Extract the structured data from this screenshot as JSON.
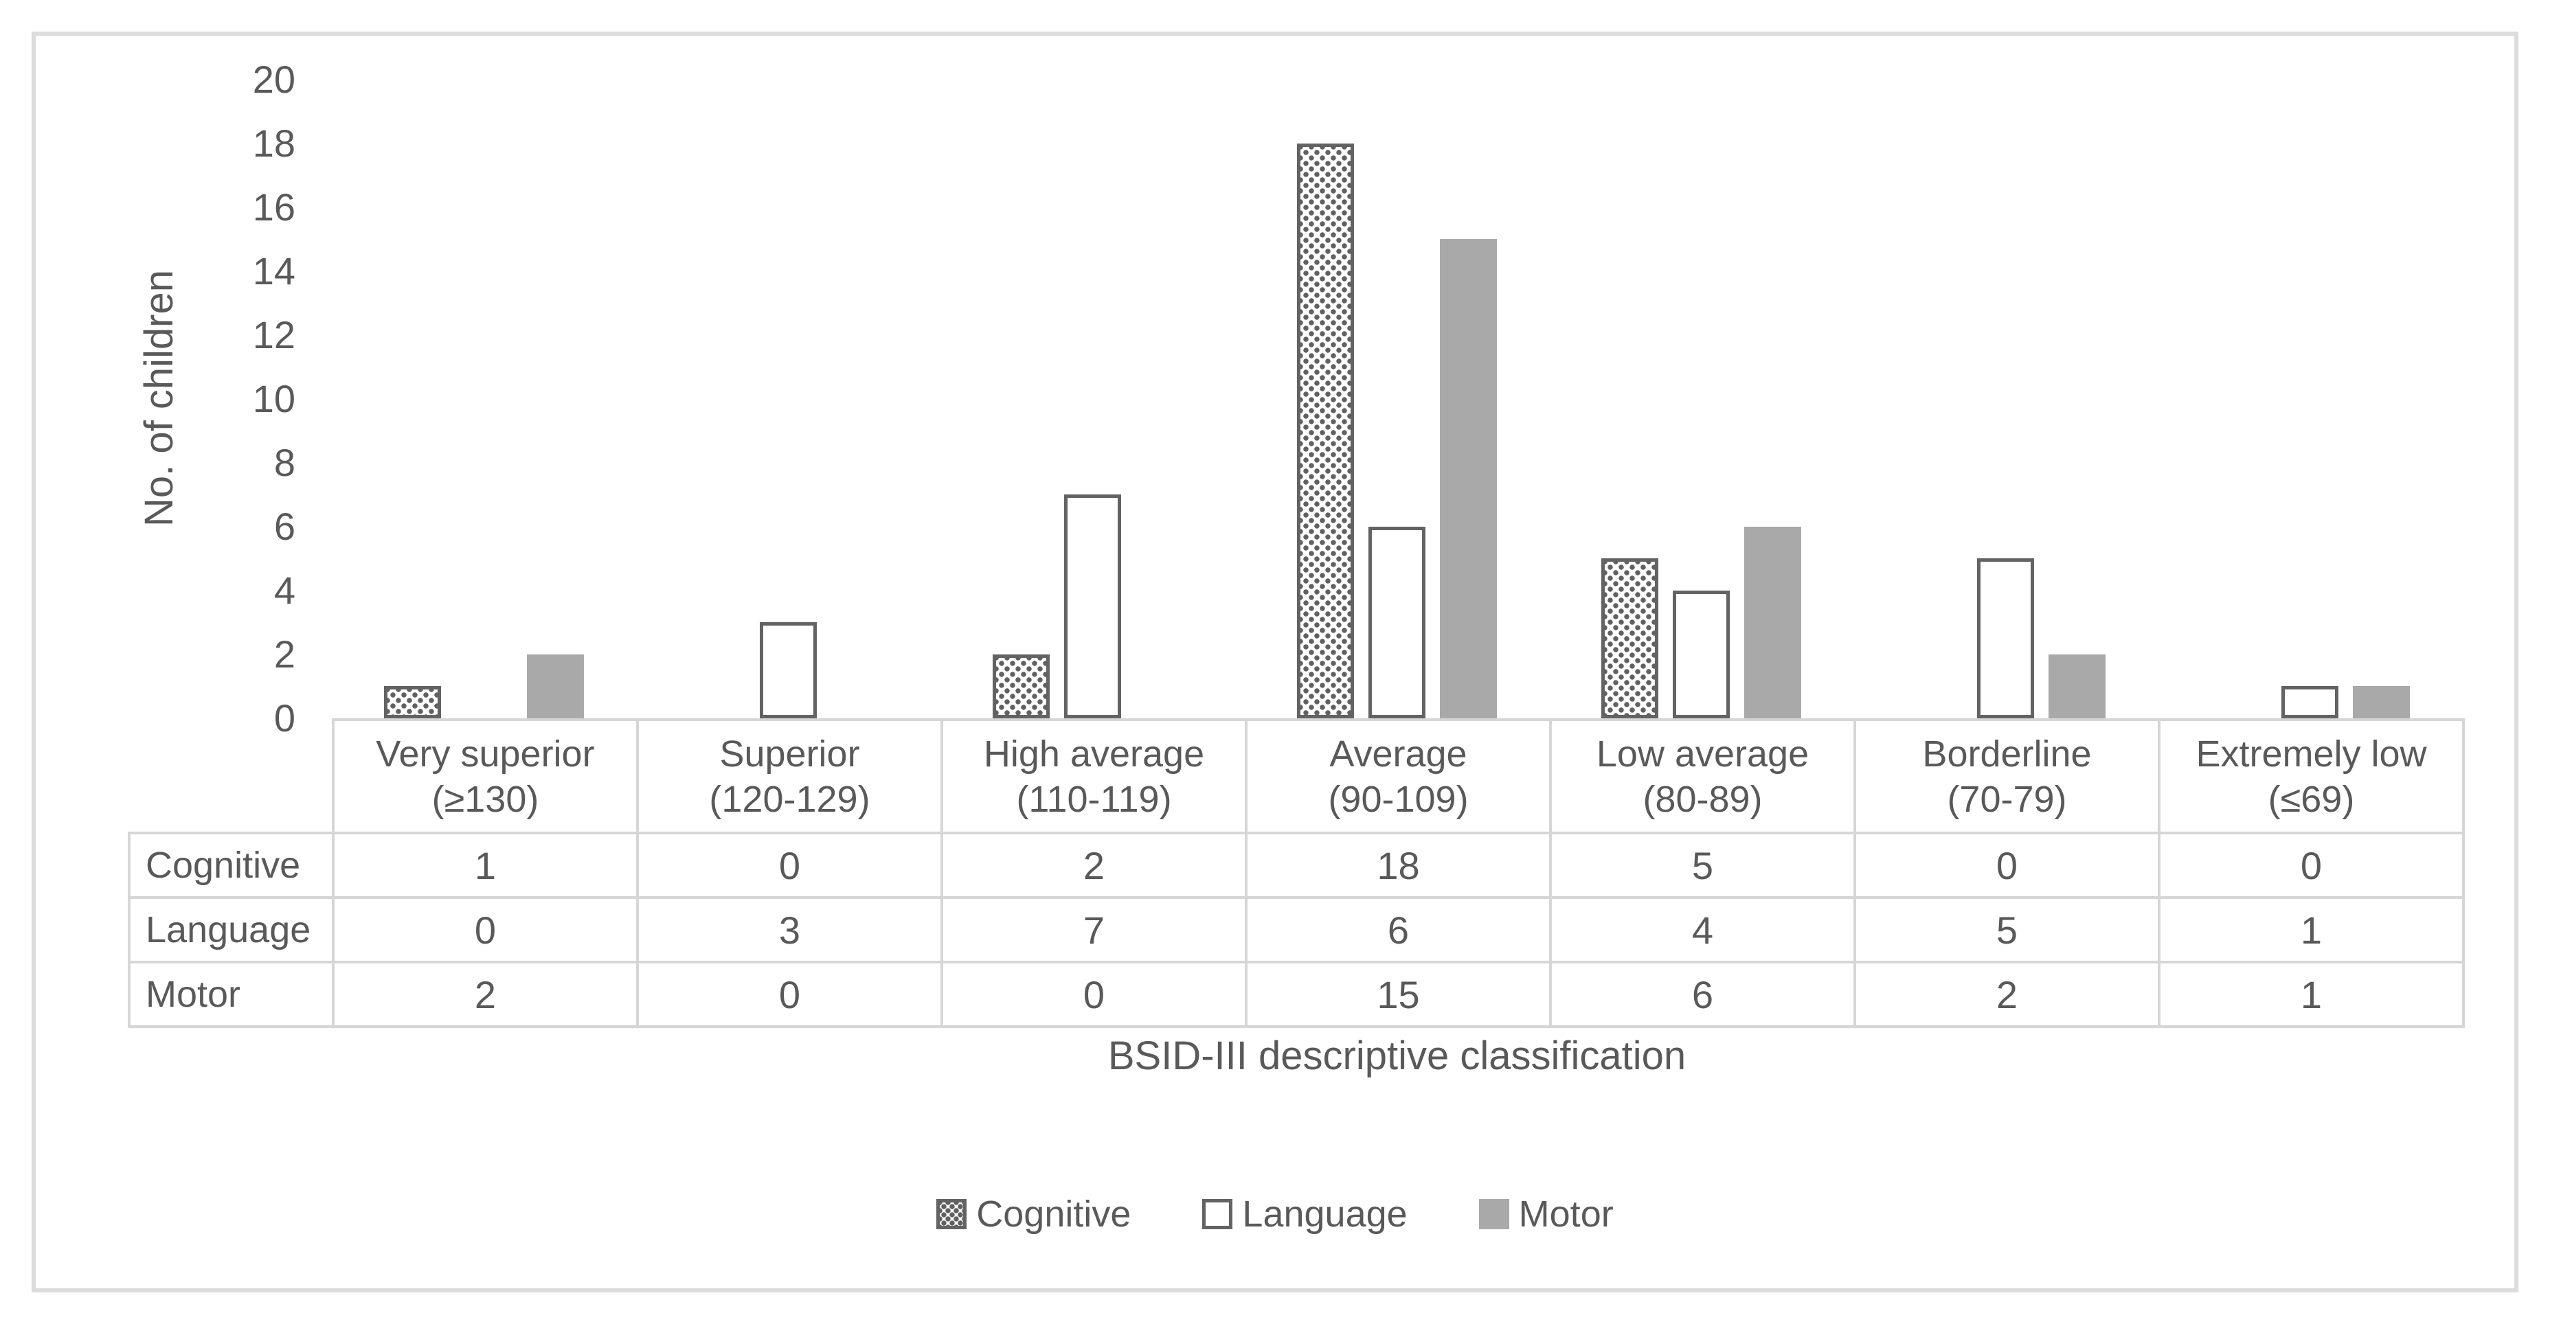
{
  "chart_data": {
    "type": "bar",
    "title": "",
    "categories": [
      {
        "name": "Very superior",
        "range": "(≥130)"
      },
      {
        "name": "Superior",
        "range": "(120-129)"
      },
      {
        "name": "High average",
        "range": "(110-119)"
      },
      {
        "name": "Average",
        "range": "(90-109)"
      },
      {
        "name": "Low average",
        "range": "(80-89)"
      },
      {
        "name": "Borderline",
        "range": "(70-79)"
      },
      {
        "name": "Extremely low",
        "range": "(≤69)"
      }
    ],
    "series": [
      {
        "name": "Cognitive",
        "pattern": "dots",
        "values": [
          1,
          0,
          2,
          18,
          5,
          0,
          0
        ]
      },
      {
        "name": "Language",
        "pattern": "none",
        "values": [
          0,
          3,
          7,
          6,
          4,
          5,
          1
        ]
      },
      {
        "name": "Motor",
        "pattern": "solid",
        "values": [
          2,
          0,
          0,
          15,
          6,
          2,
          1
        ]
      }
    ],
    "xlabel": "BSID-III descriptive classification",
    "ylabel": "No. of children",
    "ylim": [
      0,
      20
    ],
    "ytick_step": 2,
    "grid": false,
    "legend_position": "bottom",
    "data_table_shown": true
  },
  "legend": {
    "items": [
      "Cognitive",
      "Language",
      "Motor"
    ]
  },
  "colors": {
    "text": "#595959",
    "bar_border": "#636363",
    "motor_fill": "#a9a9a9",
    "pattern_dot": "#606060",
    "table_line": "#d6d6d6",
    "figure_border": "#dcdcdc"
  }
}
